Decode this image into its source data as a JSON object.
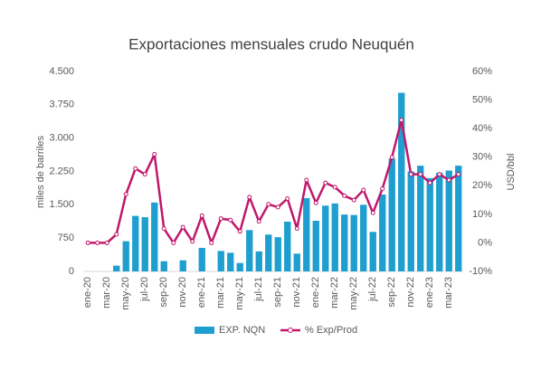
{
  "chart_data": {
    "type": "bar-line",
    "title": "Exportaciones mensuales crudo Neuquén",
    "y_label": "miles de barriles",
    "y2_label": "USD/bbl",
    "categories": [
      "ene-20",
      null,
      "mar-20",
      null,
      "may-20",
      null,
      "jul-20",
      null,
      "sep-20",
      null,
      "nov-20",
      null,
      "ene-21",
      null,
      "mar-21",
      null,
      "may-21",
      null,
      "jul-21",
      null,
      "sep-21",
      null,
      "nov-21",
      null,
      "ene-22",
      null,
      "mar-22",
      null,
      "may-22",
      null,
      "jul-22",
      null,
      "sep-22",
      null,
      "nov-22",
      null,
      "ene-23",
      null,
      "mar-23",
      null
    ],
    "series": [
      {
        "name": "EXP. NQN",
        "type": "bar",
        "color": "#1f9fd0",
        "values": [
          0,
          0,
          0,
          130,
          680,
          1250,
          1220,
          1550,
          230,
          0,
          250,
          0,
          530,
          0,
          460,
          420,
          190,
          930,
          450,
          830,
          770,
          1120,
          400,
          1650,
          1140,
          1480,
          1530,
          1280,
          1270,
          1500,
          890,
          1730,
          2540,
          4020,
          2250,
          2380,
          2100,
          2220,
          2270,
          2380
        ]
      },
      {
        "name": "% Exp/Prod",
        "type": "line",
        "axis": "y2",
        "color": "#c0176c",
        "values": [
          0,
          0,
          0,
          3,
          17,
          26,
          24,
          31,
          5,
          0,
          5.5,
          0.5,
          9.5,
          0,
          8.5,
          8,
          4,
          16,
          7.5,
          13.5,
          12.5,
          15.5,
          5,
          22,
          14,
          21,
          19.5,
          16.5,
          15,
          18.5,
          10.5,
          19,
          30,
          43,
          24,
          24,
          21,
          24,
          22,
          24
        ]
      }
    ],
    "ylim": [
      0,
      4500
    ],
    "yticks": [
      0,
      {
        "value": 750,
        "label": "750"
      },
      {
        "value": 1500,
        "label": "1.500"
      },
      {
        "value": 2250,
        "label": "2.250"
      },
      {
        "value": 3000,
        "label": "3.000"
      },
      {
        "value": 3750,
        "label": "3.750"
      },
      {
        "value": 4500,
        "label": "4.500"
      }
    ],
    "y2lim": [
      -10,
      60
    ],
    "y2ticks": [
      {
        "value": -10,
        "label": "-10%"
      },
      {
        "value": 0,
        "label": "0%"
      },
      {
        "value": 10,
        "label": "10%"
      },
      {
        "value": 20,
        "label": "20%"
      },
      {
        "value": 30,
        "label": "30%"
      },
      {
        "value": 40,
        "label": "40%"
      },
      {
        "value": 50,
        "label": "50%"
      },
      {
        "value": 60,
        "label": "60%"
      }
    ]
  }
}
